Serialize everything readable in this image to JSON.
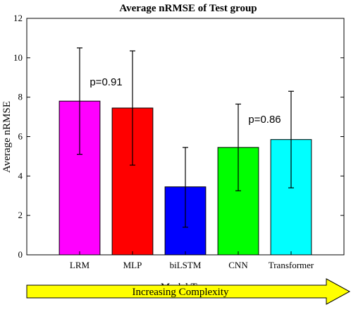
{
  "chart_data": {
    "type": "bar",
    "title": "Average nRMSE of Test group",
    "xlabel": "Model Types",
    "ylabel": "Average nRMSE",
    "ylim": [
      0,
      12
    ],
    "yticks": [
      0,
      2,
      4,
      6,
      8,
      10,
      12
    ],
    "grid": false,
    "categories": [
      "LRM",
      "MLP",
      "biLSTM",
      "CNN",
      "Transformer"
    ],
    "values": [
      7.8,
      7.45,
      3.45,
      5.45,
      5.85
    ],
    "error_low": [
      5.1,
      4.55,
      1.4,
      3.25,
      3.4
    ],
    "error_high": [
      10.5,
      10.35,
      5.45,
      7.65,
      8.3
    ],
    "colors": [
      "#ff00ff",
      "#ff0000",
      "#0000ff",
      "#00ff00",
      "#00ffff"
    ],
    "annotations": [
      {
        "text": "p=0.91",
        "x": 1.5,
        "y": 8.6
      },
      {
        "text": "p=0.86",
        "x": 4.5,
        "y": 6.7
      }
    ]
  },
  "complexity_arrow": {
    "label": "Increasing Complexity",
    "fill": "#ffff00"
  }
}
